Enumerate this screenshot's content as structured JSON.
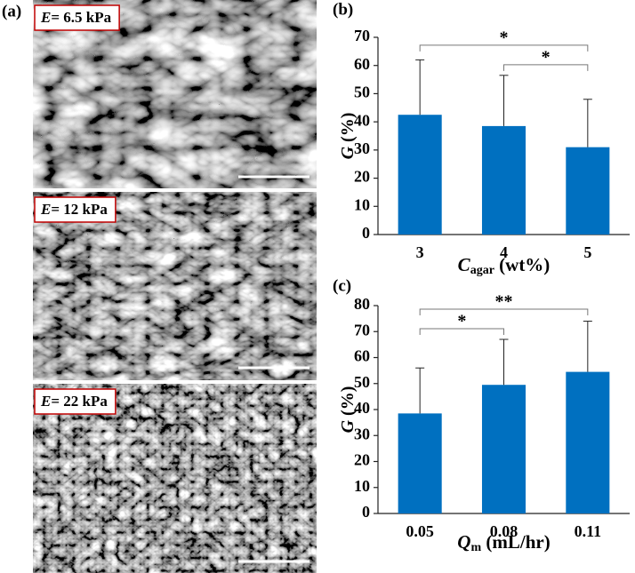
{
  "panel_a": {
    "label": "(a)",
    "images": [
      {
        "variable": "E",
        "text": "= 6.5 kPa"
      },
      {
        "variable": "E",
        "text": "= 12 kPa"
      },
      {
        "variable": "E",
        "text": "= 22 kPa"
      }
    ]
  },
  "chart_data": [
    {
      "type": "bar",
      "panel_label": "(b)",
      "y_label": {
        "symbol": "G",
        "text": " (%)"
      },
      "x_label": {
        "symbol": "C",
        "subscript": "agar",
        "text": " (wt%)"
      },
      "categories": [
        "3",
        "4",
        "5"
      ],
      "values": [
        42.5,
        38.5,
        31
      ],
      "errors": [
        19.5,
        18,
        17
      ],
      "color": "#0070c0",
      "ylim": [
        0,
        70
      ],
      "yticks": [
        0,
        10,
        20,
        30,
        40,
        50,
        60,
        70
      ],
      "significance": [
        {
          "between": [
            "3",
            "5"
          ],
          "label": "*"
        },
        {
          "between": [
            "4",
            "5"
          ],
          "label": "*"
        }
      ]
    },
    {
      "type": "bar",
      "panel_label": "(c)",
      "y_label": {
        "symbol": "G",
        "text": " (%)"
      },
      "x_label": {
        "symbol": "Q",
        "subscript": "m",
        "text": " (mL/hr)"
      },
      "categories": [
        "0.05",
        "0.08",
        "0.11"
      ],
      "values": [
        38.5,
        49.5,
        54.5
      ],
      "errors": [
        17.5,
        17.5,
        19.5
      ],
      "color": "#0070c0",
      "ylim": [
        0,
        80
      ],
      "yticks": [
        0,
        10,
        20,
        30,
        40,
        50,
        60,
        70,
        80
      ],
      "significance": [
        {
          "between": [
            "0.05",
            "0.08"
          ],
          "label": "*"
        },
        {
          "between": [
            "0.05",
            "0.11"
          ],
          "label": "**"
        }
      ]
    }
  ]
}
